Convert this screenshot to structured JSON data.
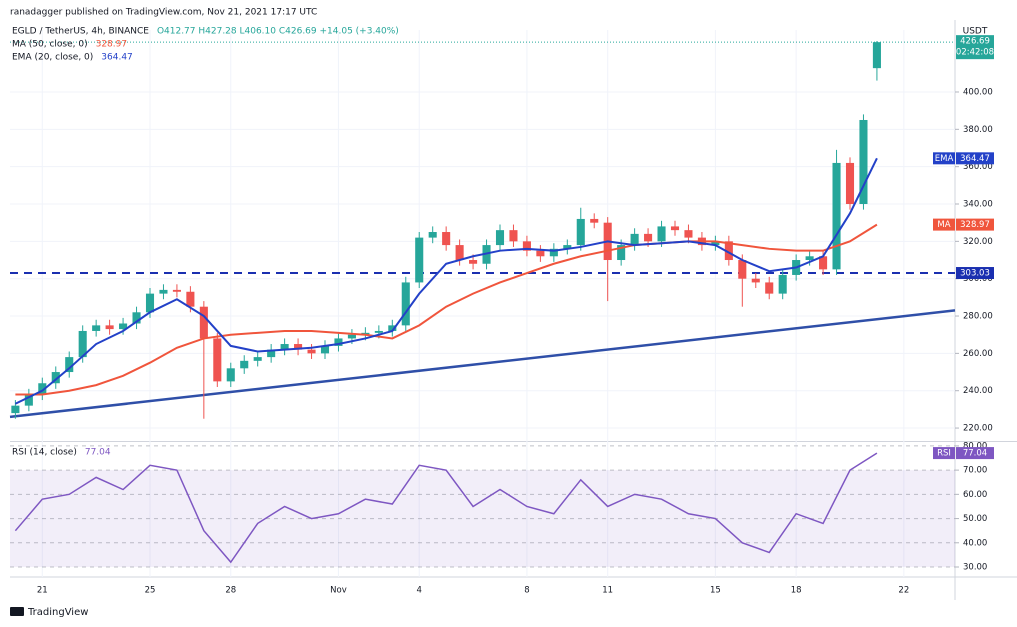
{
  "header": {
    "publisher": "ranadagger published on TradingView.com, Nov 21, 2021 17:17 UTC",
    "symbol": "EGLD / TetherUS, 4h, BINANCE",
    "ohlc": "O412.77  H427.28  L406.10  C426.69  +14.05 (+3.40%)",
    "footer": "TradingView"
  },
  "chart_data": [
    {
      "type": "candlestick",
      "currency": "USDT",
      "countdown": "02:42:08",
      "up_color": "#26a69a",
      "down_color": "#ef5350",
      "xlim": [
        19.8,
        54.9
      ],
      "xticks": [
        21,
        25,
        28,
        {
          "value": 32,
          "label": "Nov"
        },
        {
          "value": 35,
          "label": "4"
        },
        {
          "value": 39,
          "label": "8"
        },
        {
          "value": 42,
          "label": "11"
        },
        {
          "value": 46,
          "label": "15"
        },
        {
          "value": 49,
          "label": "18"
        },
        {
          "value": 53,
          "label": "22"
        }
      ],
      "ylim": [
        213.6,
        433.2
      ],
      "yticks": [
        {
          "value": 220,
          "label": "220.00"
        },
        {
          "value": 240,
          "label": "240.00"
        },
        {
          "value": 260,
          "label": "260.00"
        },
        {
          "value": 280,
          "label": "280.00"
        },
        {
          "value": 300,
          "label": "300.00"
        },
        {
          "value": 320,
          "label": "320.00"
        },
        {
          "value": 340,
          "label": "340.00"
        },
        {
          "value": 360,
          "label": "360.00"
        },
        {
          "value": 380,
          "label": "380.00"
        },
        {
          "value": 400,
          "label": "400.00"
        }
      ],
      "grid": true,
      "x": [
        20,
        20.5,
        21,
        21.5,
        22,
        22.5,
        23,
        23.5,
        24,
        24.5,
        25,
        25.5,
        26,
        26.5,
        27,
        27.5,
        28,
        28.5,
        29,
        29.5,
        30,
        30.5,
        31,
        31.5,
        32,
        32.5,
        33,
        33.5,
        34,
        34.5,
        35,
        35.5,
        36,
        36.5,
        37,
        37.5,
        38,
        38.5,
        39,
        39.5,
        40,
        40.5,
        41,
        41.5,
        42,
        42.5,
        43,
        43.5,
        44,
        44.5,
        45,
        45.5,
        46,
        46.5,
        47,
        47.5,
        48,
        48.5,
        49,
        49.5,
        50,
        50.5,
        51,
        51.5,
        52
      ],
      "open": [
        228,
        232,
        238,
        244,
        250,
        258,
        272,
        275,
        273,
        276,
        282,
        292,
        294,
        293,
        285,
        268,
        245,
        252,
        256,
        258,
        262,
        265,
        262,
        260,
        264,
        268,
        270,
        271,
        272,
        275,
        298,
        322,
        325,
        318,
        310,
        308,
        318,
        326,
        320,
        315,
        312,
        316,
        318,
        332,
        330,
        310,
        318,
        324,
        320,
        328,
        326,
        322,
        318,
        320,
        310,
        300,
        298,
        292,
        302,
        310,
        312,
        305,
        362,
        340,
        412.77
      ],
      "high": [
        235,
        241,
        247,
        253,
        261,
        275,
        278,
        278,
        279,
        285,
        295,
        297,
        297,
        296,
        288,
        271,
        255,
        259,
        261,
        265,
        268,
        268,
        265,
        267,
        271,
        273,
        274,
        275,
        278,
        301,
        325,
        328,
        328,
        321,
        313,
        321,
        329,
        329,
        323,
        318,
        319,
        321,
        338,
        335,
        333,
        321,
        327,
        327,
        331,
        331,
        329,
        325,
        323,
        323,
        313,
        303,
        301,
        305,
        313,
        315,
        315,
        369,
        365,
        388,
        427.28
      ],
      "low": [
        225,
        229,
        235,
        241,
        247,
        255,
        269,
        270,
        270,
        273,
        279,
        289,
        290,
        282,
        225,
        242,
        242,
        249,
        253,
        255,
        259,
        259,
        257,
        257,
        261,
        265,
        267,
        268,
        269,
        272,
        295,
        319,
        315,
        307,
        305,
        305,
        315,
        317,
        312,
        309,
        309,
        313,
        315,
        327,
        288,
        307,
        315,
        317,
        317,
        323,
        319,
        315,
        315,
        307,
        285,
        295,
        289,
        289,
        299,
        307,
        302,
        302,
        337,
        337,
        406.1
      ],
      "close": [
        232,
        238,
        244,
        250,
        258,
        272,
        275,
        273,
        276,
        282,
        292,
        294,
        293,
        285,
        268,
        245,
        252,
        256,
        258,
        262,
        265,
        262,
        260,
        264,
        268,
        270,
        271,
        272,
        275,
        298,
        322,
        325,
        318,
        310,
        308,
        318,
        326,
        320,
        315,
        312,
        316,
        318,
        332,
        330,
        310,
        318,
        324,
        320,
        328,
        326,
        322,
        318,
        320,
        310,
        300,
        298,
        292,
        302,
        310,
        312,
        305,
        362,
        340,
        385,
        426.69
      ],
      "series": [
        {
          "name": "MA (50, close, 0)",
          "badge": "MA",
          "color": "#f0553c",
          "x": [
            20,
            21,
            22,
            23,
            24,
            25,
            26,
            27,
            28,
            29,
            30,
            31,
            32,
            33,
            34,
            35,
            36,
            37,
            38,
            39,
            40,
            41,
            42,
            43,
            44,
            45,
            46,
            47,
            48,
            49,
            50,
            51,
            52
          ],
          "values": [
            238,
            238,
            240,
            243,
            248,
            255,
            263,
            268,
            270,
            271,
            272,
            272,
            271,
            270,
            268,
            275,
            285,
            292,
            298,
            303,
            308,
            312,
            315,
            318,
            319,
            320,
            320,
            318,
            316,
            315,
            315,
            320,
            328.97
          ]
        },
        {
          "name": "EMA (20, close, 0)",
          "badge": "EMA",
          "color": "#2341c8",
          "x": [
            20,
            21,
            22,
            23,
            24,
            25,
            26,
            27,
            28,
            29,
            30,
            31,
            32,
            33,
            34,
            35,
            36,
            37,
            38,
            39,
            40,
            41,
            42,
            43,
            44,
            45,
            46,
            47,
            48,
            49,
            50,
            51,
            52
          ],
          "values": [
            233,
            240,
            252,
            265,
            272,
            282,
            289,
            280,
            264,
            261,
            262,
            263,
            265,
            268,
            272,
            292,
            308,
            312,
            315,
            316,
            315,
            317,
            320,
            318,
            319,
            320,
            318,
            310,
            304,
            306,
            312,
            335,
            364.47
          ]
        }
      ],
      "hline": {
        "value": 303.03,
        "color": "#1a2fb0"
      },
      "trendline": {
        "x": [
          19.8,
          54.9
        ],
        "values": [
          226,
          283
        ],
        "color": "#2f4fa8"
      }
    },
    {
      "type": "line",
      "xlim": [
        19.8,
        54.9
      ],
      "ylim": [
        26.7,
        81.2
      ],
      "yticks": [
        {
          "value": 30,
          "label": "30.00"
        },
        {
          "value": 40,
          "label": "40.00"
        },
        {
          "value": 50,
          "label": "50.00"
        },
        {
          "value": 60,
          "label": "60.00"
        },
        {
          "value": 70,
          "label": "70.00"
        },
        {
          "value": 80,
          "label": "80.00"
        }
      ],
      "band": [
        30,
        70
      ],
      "series": [
        {
          "name": "RSI (14, close)",
          "badge": "RSI",
          "color": "#7e57c2",
          "x": [
            20,
            21,
            22,
            23,
            24,
            25,
            26,
            27,
            28,
            29,
            30,
            31,
            32,
            33,
            34,
            35,
            36,
            37,
            38,
            39,
            40,
            41,
            42,
            43,
            44,
            45,
            46,
            47,
            48,
            49,
            50,
            51,
            52
          ],
          "values": [
            45,
            58,
            60,
            67,
            62,
            72,
            70,
            45,
            32,
            48,
            55,
            50,
            52,
            58,
            56,
            72,
            70,
            55,
            62,
            55,
            52,
            66,
            55,
            60,
            58,
            52,
            50,
            40,
            36,
            52,
            48,
            70,
            77.04
          ]
        }
      ]
    }
  ]
}
